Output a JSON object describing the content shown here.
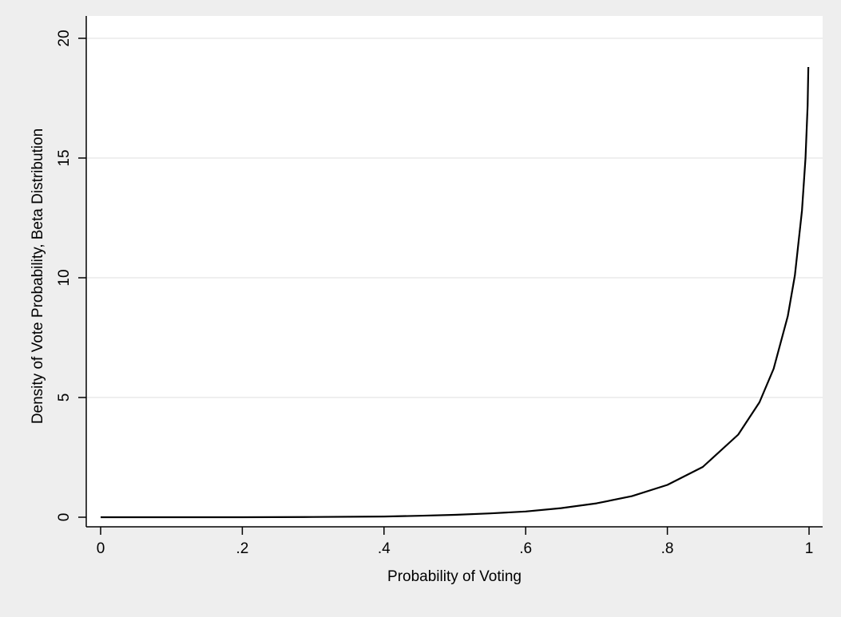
{
  "chart_data": {
    "type": "line",
    "title": "",
    "xlabel": "Probability of Voting",
    "ylabel": "Density of Vote Probability, Beta Distribution",
    "xlim": [
      0,
      1
    ],
    "ylim": [
      0,
      20
    ],
    "x_ticks": [
      0,
      0.2,
      0.4,
      0.6,
      0.8,
      1
    ],
    "x_tick_labels": [
      "0",
      ".2",
      ".4",
      ".6",
      ".8",
      "1"
    ],
    "y_ticks": [
      0,
      5,
      10,
      15,
      20
    ],
    "y_tick_labels": [
      "0",
      "5",
      "10",
      "15",
      "20"
    ],
    "grid": "horizontal",
    "legend": "none",
    "colors": {
      "background": "#eeeeee",
      "plot_area": "#ffffff",
      "gridline": "#eaeaea",
      "line": "#000000"
    },
    "series": [
      {
        "x": [
          0,
          0.1,
          0.2,
          0.3,
          0.4,
          0.45,
          0.5,
          0.55,
          0.6,
          0.65,
          0.7,
          0.75,
          0.8,
          0.85,
          0.9,
          0.93,
          0.95,
          0.97,
          0.98,
          0.99,
          0.995,
          0.998,
          0.999
        ],
        "y": [
          0,
          0,
          0,
          0.01,
          0.03,
          0.06,
          0.1,
          0.16,
          0.24,
          0.38,
          0.58,
          0.88,
          1.35,
          2.1,
          3.45,
          4.8,
          6.2,
          8.4,
          10.1,
          12.8,
          15.0,
          17.2,
          18.8
        ]
      }
    ]
  }
}
